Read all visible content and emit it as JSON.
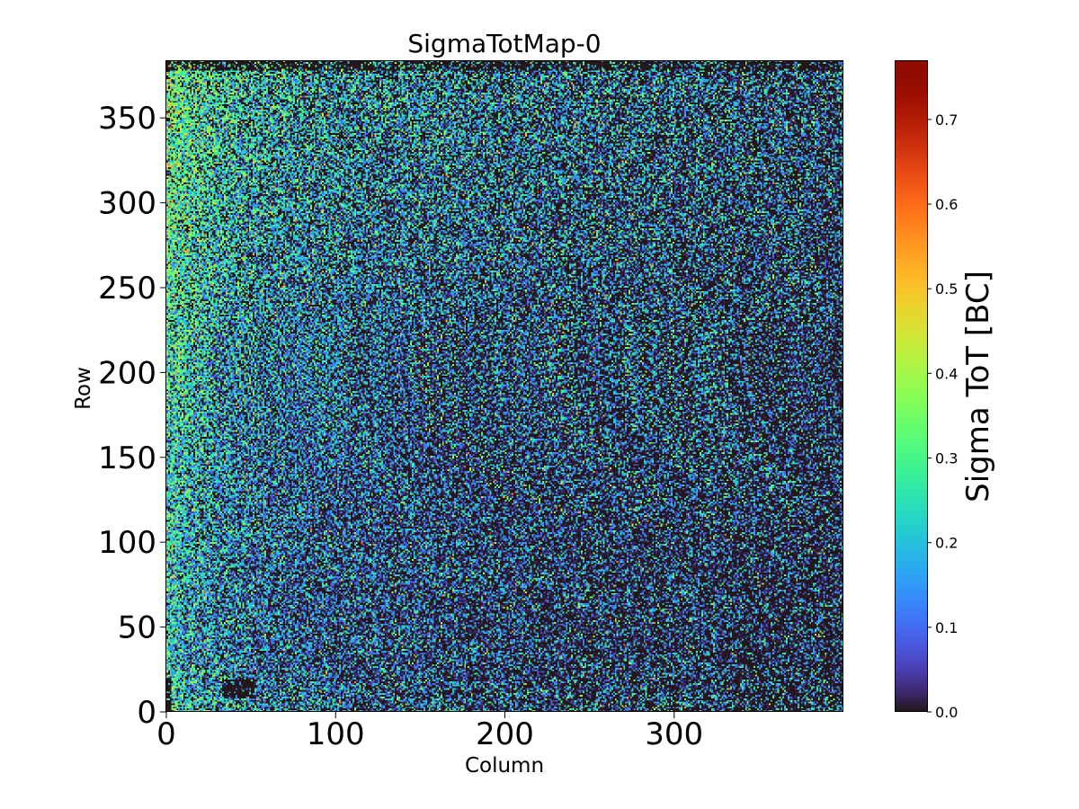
{
  "chart_data": {
    "type": "heatmap",
    "title": "SigmaTotMap-0",
    "xlabel": "Column",
    "ylabel": "Row",
    "xlim": [
      0,
      400
    ],
    "ylim": [
      0,
      384
    ],
    "x_ticks": [
      0,
      100,
      200,
      300
    ],
    "x_tick_labels": [
      "0",
      "100",
      "200",
      "300"
    ],
    "y_ticks": [
      0,
      50,
      100,
      150,
      200,
      250,
      300,
      350
    ],
    "y_tick_labels": [
      "0",
      "50",
      "100",
      "150",
      "200",
      "250",
      "300",
      "350"
    ],
    "colorbar": {
      "label": "Sigma ToT [BC]",
      "range": [
        0.0,
        0.77
      ],
      "ticks": [
        0.0,
        0.1,
        0.2,
        0.3,
        0.4,
        0.5,
        0.6,
        0.7
      ],
      "tick_labels": [
        "0.0",
        "0.1",
        "0.2",
        "0.3",
        "0.4",
        "0.5",
        "0.6",
        "0.7"
      ],
      "colormap": "turbo"
    },
    "columns": 400,
    "rows": 384,
    "grid": false
  }
}
